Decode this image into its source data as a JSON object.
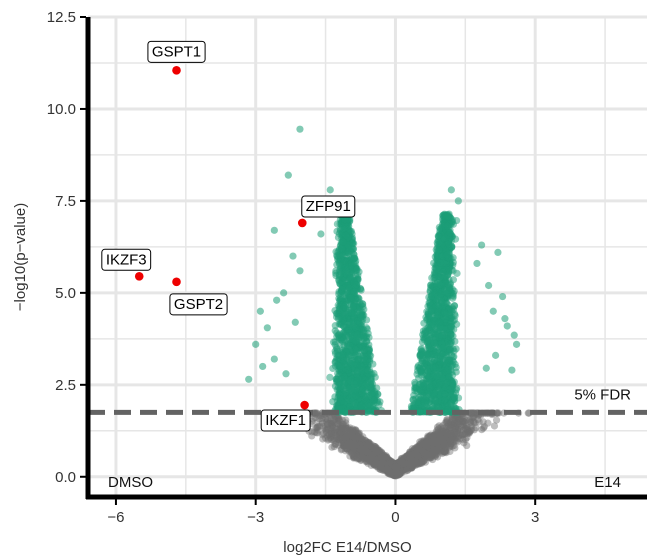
{
  "colors": {
    "significant": "#1b9e77",
    "nonsignificant": "#6e6e6e",
    "highlight": "#ee0000",
    "threshold_line": "#636363",
    "grid": "#e6e6e6",
    "axis": "#000000"
  },
  "chart_data": {
    "type": "scatter",
    "title": "",
    "xlabel": "log2FC E14/DMSO",
    "ylabel": "−log10(p−value)",
    "xlim": [
      -6.6,
      5.4
    ],
    "ylim": [
      -0.55,
      12.5
    ],
    "x_ticks": [
      {
        "value": -6,
        "label": "−6"
      },
      {
        "value": -3,
        "label": "−3"
      },
      {
        "value": 0,
        "label": "0"
      },
      {
        "value": 3,
        "label": "3"
      }
    ],
    "y_ticks": [
      {
        "value": 0,
        "label": "0.0"
      },
      {
        "value": 2.5,
        "label": "2.5"
      },
      {
        "value": 5,
        "label": "5.0"
      },
      {
        "value": 7.5,
        "label": "7.5"
      },
      {
        "value": 10,
        "label": "10.0"
      },
      {
        "value": 12.5,
        "label": "12.5"
      }
    ],
    "grid": true,
    "threshold": {
      "y": 1.75,
      "label": "5% FDR",
      "style": "dashed"
    },
    "corner_labels": {
      "left": "DMSO",
      "right": "E14"
    },
    "highlighted_genes": [
      {
        "name": "GSPT1",
        "x": -4.7,
        "y": 11.05
      },
      {
        "name": "ZFP91",
        "x": -2.0,
        "y": 6.9
      },
      {
        "name": "IKZF3",
        "x": -5.5,
        "y": 5.45
      },
      {
        "name": "GSPT2",
        "x": -4.7,
        "y": 5.3
      },
      {
        "name": "IKZF1",
        "x": -1.95,
        "y": 1.95
      }
    ],
    "significant_outliers": [
      [
        -2.05,
        9.45
      ],
      [
        -2.3,
        8.2
      ],
      [
        -1.4,
        7.8
      ],
      [
        -2.6,
        6.7
      ],
      [
        -2.2,
        6.0
      ],
      [
        -1.6,
        6.6
      ],
      [
        -2.4,
        5.0
      ],
      [
        -2.55,
        4.8
      ],
      [
        -2.9,
        4.5
      ],
      [
        -3.0,
        3.6
      ],
      [
        -2.6,
        3.2
      ],
      [
        -2.35,
        2.8
      ],
      [
        -2.15,
        4.2
      ],
      [
        -1.75,
        7.2
      ],
      [
        -2.75,
        4.05
      ],
      [
        -2.85,
        3.0
      ],
      [
        -3.15,
        2.65
      ],
      [
        -2.05,
        5.6
      ],
      [
        1.2,
        7.8
      ],
      [
        1.35,
        7.5
      ],
      [
        1.1,
        7.1
      ],
      [
        2.2,
        6.1
      ],
      [
        2.0,
        5.2
      ],
      [
        2.3,
        4.9
      ],
      [
        2.4,
        4.1
      ],
      [
        2.1,
        4.5
      ],
      [
        1.75,
        5.8
      ],
      [
        2.6,
        3.6
      ],
      [
        2.15,
        3.3
      ],
      [
        1.95,
        2.95
      ],
      [
        2.5,
        2.9
      ],
      [
        1.85,
        6.3
      ],
      [
        2.35,
        4.3
      ],
      [
        2.55,
        3.85
      ]
    ],
    "distribution": {
      "description_note": "",
      "n_significant_per_arm": 1300,
      "n_nonsignificant": 2600,
      "max_abs_log2fc_ns": 3.0
    }
  }
}
